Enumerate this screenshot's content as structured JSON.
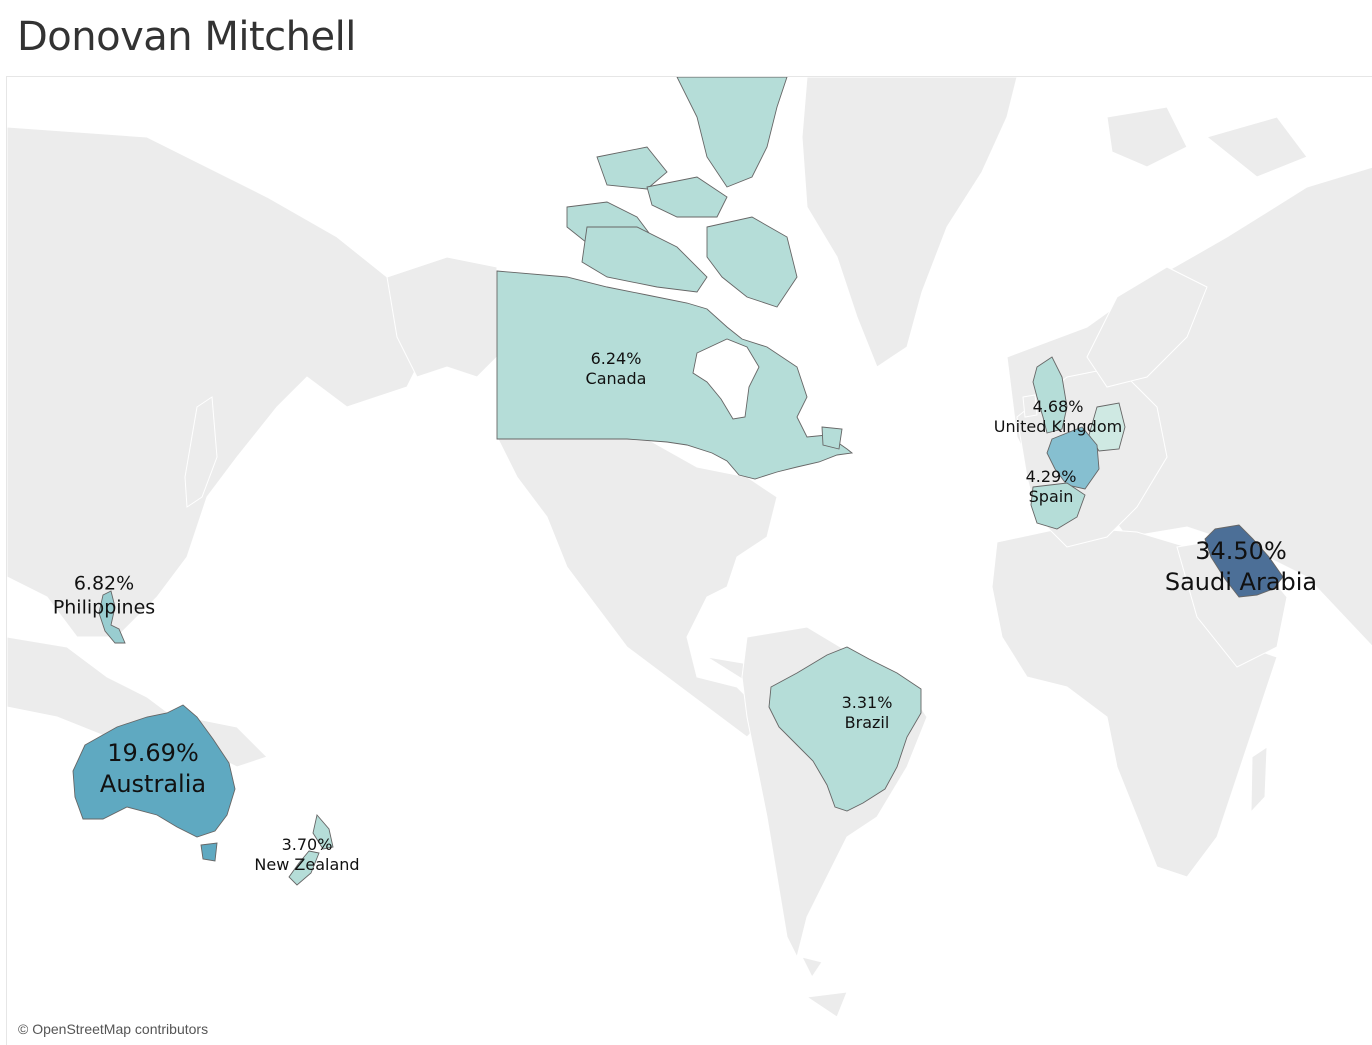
{
  "title": "Donovan Mitchell",
  "attribution": "© OpenStreetMap contributors",
  "legend_colors": {
    "land_default": "#ececec",
    "low": "#b5ddd8",
    "mid_low": "#99cdd0",
    "mid": "#86bfd0",
    "mid_high": "#5fa9c1",
    "high": "#4c6f97"
  },
  "regions": [
    {
      "country": "Saudi Arabia",
      "percent": "34.50%",
      "value": 34.5,
      "color": "#4c6f97"
    },
    {
      "country": "Australia",
      "percent": "19.69%",
      "value": 19.69,
      "color": "#5fa9c1"
    },
    {
      "country": "Philippines",
      "percent": "6.82%",
      "value": 6.82,
      "color": "#99cdd0"
    },
    {
      "country": "Canada",
      "percent": "6.24%",
      "value": 6.24,
      "color": "#b5ddd8"
    },
    {
      "country": "United Kingdom",
      "percent": "4.68%",
      "value": 4.68,
      "color": "#b5ddd8"
    },
    {
      "country": "Spain",
      "percent": "4.29%",
      "value": 4.29,
      "color": "#b5ddd8"
    },
    {
      "country": "New Zealand",
      "percent": "3.70%",
      "value": 3.7,
      "color": "#b5ddd8"
    },
    {
      "country": "Brazil",
      "percent": "3.31%",
      "value": 3.31,
      "color": "#b5ddd8"
    }
  ],
  "unlabeled_highlights": [
    {
      "country": "France",
      "color": "#86bfd0"
    },
    {
      "country": "Germany",
      "color": "#cfe9e3"
    }
  ]
}
